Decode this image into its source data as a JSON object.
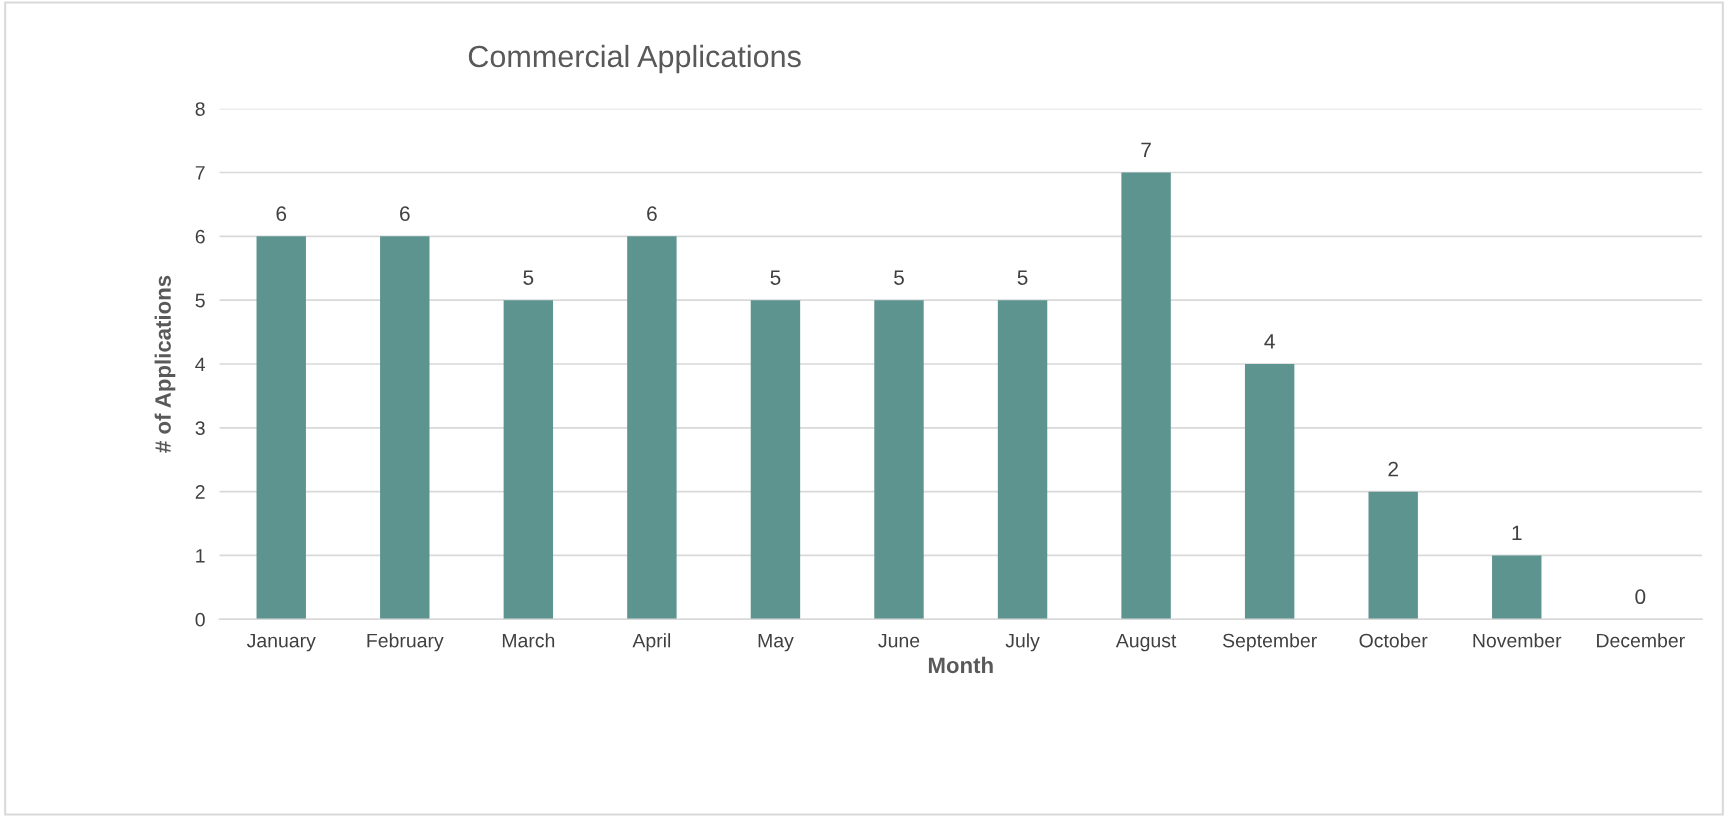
{
  "chart_data": {
    "type": "bar",
    "title": "Commercial Applications",
    "xlabel": "Month",
    "ylabel": "# of Applications",
    "categories": [
      "January",
      "February",
      "March",
      "April",
      "May",
      "June",
      "July",
      "August",
      "September",
      "October",
      "November",
      "December"
    ],
    "values": [
      6,
      6,
      5,
      6,
      5,
      5,
      5,
      7,
      4,
      2,
      1,
      0
    ],
    "color": "#5d9490",
    "ylim": [
      0,
      8
    ],
    "yticks": [
      0,
      1,
      2,
      3,
      4,
      5,
      6,
      7,
      8
    ],
    "grid": "y",
    "data_labels": true
  }
}
